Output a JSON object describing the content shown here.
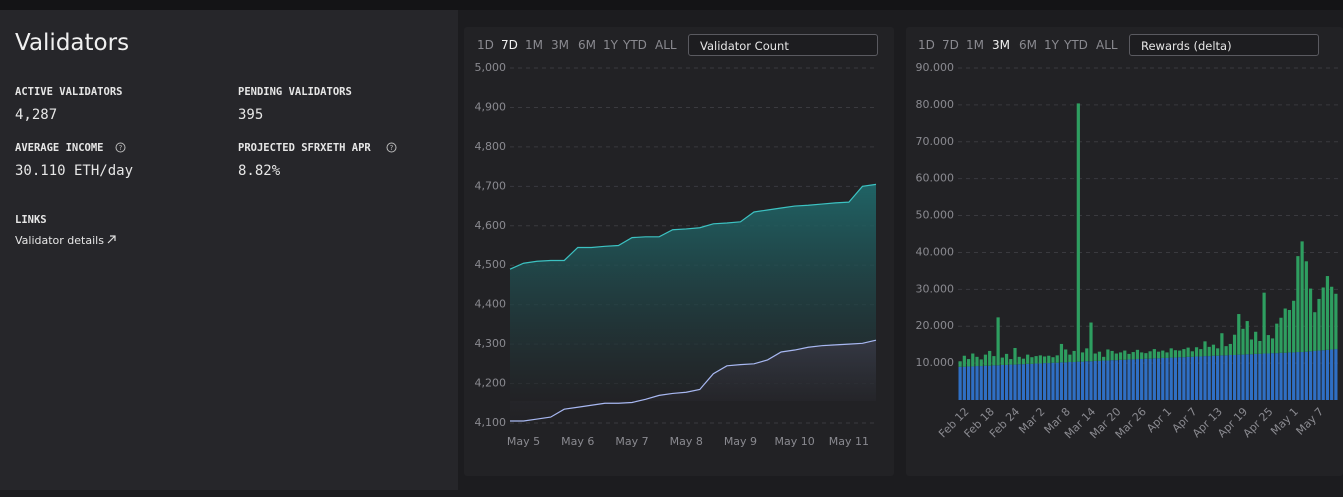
{
  "panel": {
    "title": "Validators",
    "stats": [
      {
        "label": "ACTIVE VALIDATORS",
        "value": "4,287"
      },
      {
        "label": "PENDING VALIDATORS",
        "value": "395"
      },
      {
        "label": "AVERAGE INCOME",
        "value": "30.110 ETH/day"
      },
      {
        "label": "PROJECTED SFRXETH APR",
        "value": "8.82%"
      }
    ],
    "links_title": "LINKS",
    "link": "Validator details"
  },
  "chart_data": [
    {
      "type": "line",
      "range_buttons": [
        "1D",
        "7D",
        "1M",
        "3M",
        "6M",
        "1Y",
        "YTD",
        "ALL"
      ],
      "selected_range": 1,
      "selector": "Validator Count",
      "categories": [
        null,
        "May 5",
        null,
        null,
        null,
        "May 6",
        null,
        null,
        null,
        "May 7",
        null,
        null,
        null,
        "May 8",
        null,
        null,
        null,
        "May 9",
        null,
        null,
        null,
        "May 10",
        null,
        null,
        null,
        "May 11",
        null,
        null
      ],
      "series": [
        {
          "color": "#3cc2c2",
          "values": [
            4490,
            4505,
            4510,
            4512,
            4512,
            4545,
            4545,
            4548,
            4550,
            4570,
            4572,
            4572,
            4590,
            4592,
            4595,
            4605,
            4607,
            4610,
            4635,
            4640,
            4645,
            4650,
            4652,
            4655,
            4658,
            4660,
            4700,
            4705
          ]
        },
        {
          "color": "#a8b8f2",
          "values": [
            4105,
            4105,
            4110,
            4115,
            4135,
            4140,
            4145,
            4150,
            4150,
            4152,
            4160,
            4170,
            4175,
            4178,
            4185,
            4225,
            4245,
            4248,
            4250,
            4260,
            4280,
            4285,
            4292,
            4296,
            4298,
            4300,
            4302,
            4310
          ]
        }
      ],
      "ylim": [
        4100,
        5000
      ],
      "yticks": [
        {
          "value": 4100,
          "label": "4,100"
        },
        {
          "value": 4200,
          "label": "4,200"
        },
        {
          "value": 4300,
          "label": "4,300"
        },
        {
          "value": 4400,
          "label": "4,400"
        },
        {
          "value": 4500,
          "label": "4,500"
        },
        {
          "value": 4600,
          "label": "4,600"
        },
        {
          "value": 4700,
          "label": "4,700"
        },
        {
          "value": 4800,
          "label": "4,800"
        },
        {
          "value": 4900,
          "label": "4,900"
        },
        {
          "value": 5000,
          "label": "5,000"
        }
      ],
      "grid": true
    },
    {
      "type": "stacked_bar",
      "range_buttons": [
        "1D",
        "7D",
        "1M",
        "3M",
        "6M",
        "1Y",
        "YTD",
        "ALL"
      ],
      "selected_range": 3,
      "selector": "Rewards (delta)",
      "categories": [
        null,
        "Feb 12",
        null,
        null,
        null,
        null,
        null,
        "Feb 18",
        null,
        null,
        null,
        null,
        null,
        "Feb 24",
        null,
        null,
        null,
        null,
        null,
        "Mar 2",
        null,
        null,
        null,
        null,
        null,
        "Mar 8",
        null,
        null,
        null,
        null,
        null,
        "Mar 14",
        null,
        null,
        null,
        null,
        null,
        "Mar 20",
        null,
        null,
        null,
        null,
        null,
        "Mar 26",
        null,
        null,
        null,
        null,
        null,
        "Apr 1",
        null,
        null,
        null,
        null,
        null,
        "Apr 7",
        null,
        null,
        null,
        null,
        null,
        "Apr 13",
        null,
        null,
        null,
        null,
        null,
        "Apr 19",
        null,
        null,
        null,
        null,
        null,
        "Apr 25",
        null,
        null,
        null,
        null,
        null,
        "May 1",
        null,
        null,
        null,
        null,
        null,
        "May 7",
        null,
        null,
        null,
        null
      ],
      "series": [
        {
          "color": "#2f6fc4",
          "values": [
            9000,
            9000,
            9100,
            9100,
            9200,
            9200,
            9300,
            9300,
            9400,
            9400,
            9500,
            9500,
            9600,
            9600,
            9700,
            9700,
            9800,
            9800,
            9900,
            9900,
            10000,
            10000,
            10100,
            10100,
            10200,
            10200,
            10300,
            10300,
            10400,
            10400,
            10500,
            10500,
            10600,
            10600,
            10700,
            10700,
            10800,
            10800,
            10900,
            10900,
            11000,
            11000,
            11100,
            11100,
            11200,
            11200,
            11300,
            11300,
            11400,
            11400,
            11500,
            11500,
            11600,
            11600,
            11700,
            11700,
            11800,
            11800,
            11900,
            11900,
            12000,
            12000,
            12100,
            12100,
            12200,
            12200,
            12300,
            12300,
            12400,
            12400,
            12500,
            12500,
            12600,
            12600,
            12700,
            12700,
            12800,
            12800,
            12900,
            12900,
            13000,
            13000,
            13100,
            13200,
            13300,
            13400,
            13500,
            13600,
            13700,
            13800
          ]
        },
        {
          "color": "#2e9e60",
          "values": [
            1500,
            3000,
            2000,
            3500,
            2500,
            1800,
            3000,
            4000,
            2500,
            13000,
            2000,
            3000,
            1500,
            4500,
            2000,
            1500,
            2500,
            1800,
            2000,
            2200,
            1800,
            2000,
            1500,
            2000,
            5000,
            3500,
            2000,
            3000,
            70000,
            2500,
            3500,
            10500,
            2000,
            2500,
            1000,
            3000,
            2500,
            1800,
            2000,
            2500,
            1500,
            2000,
            2500,
            1800,
            1500,
            2000,
            2500,
            1800,
            2000,
            1500,
            2500,
            2000,
            1800,
            2200,
            2500,
            1500,
            2500,
            2000,
            4000,
            2500,
            3000,
            2000,
            6000,
            2500,
            3000,
            5500,
            11000,
            7000,
            9000,
            4000,
            6000,
            3500,
            16500,
            5000,
            4000,
            8000,
            9500,
            12000,
            11500,
            14000,
            26000,
            30000,
            24500,
            17000,
            10500,
            14000,
            17000,
            20000,
            17000,
            15000
          ]
        }
      ],
      "ylim": [
        0,
        90000
      ],
      "yticks": [
        {
          "value": 10000,
          "label": "10.000"
        },
        {
          "value": 20000,
          "label": "20.000"
        },
        {
          "value": 30000,
          "label": "30.000"
        },
        {
          "value": 40000,
          "label": "40.000"
        },
        {
          "value": 50000,
          "label": "50.000"
        },
        {
          "value": 60000,
          "label": "60.000"
        },
        {
          "value": 70000,
          "label": "70.000"
        },
        {
          "value": 80000,
          "label": "80.000"
        },
        {
          "value": 90000,
          "label": "90.000"
        }
      ],
      "grid": true
    }
  ]
}
